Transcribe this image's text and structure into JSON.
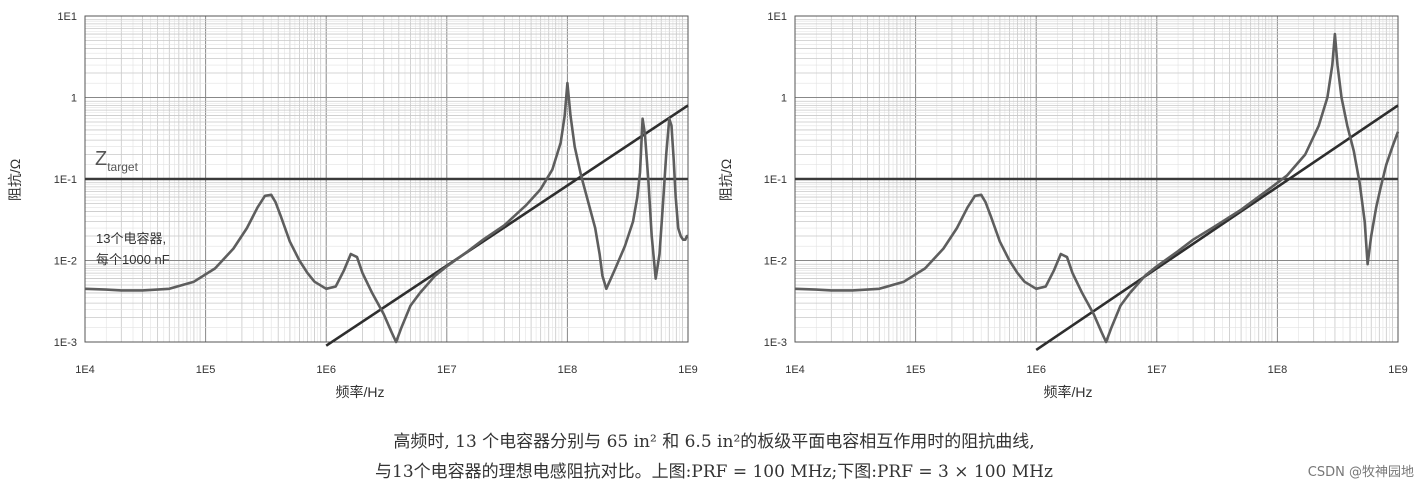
{
  "caption": {
    "line1": "高频时, 13 个电容器分别与 65 in² 和 6.5 in²的板级平面电容相互作用时的阻抗曲线,",
    "line2": "与13个电容器的理想电感阻抗对比。上图:PRF = 100 MHz;下图:PRF = 3 × 100 MHz"
  },
  "watermark": "CSDN @牧神园地",
  "chart_data": [
    {
      "type": "line",
      "xscale": "log",
      "yscale": "log",
      "xlim": [
        10000,
        1000000000
      ],
      "ylim": [
        0.001,
        10
      ],
      "xlabel": "频率/Hz",
      "ylabel": "阻抗/Ω",
      "xticks": [
        "1E4",
        "1E5",
        "1E6",
        "1E7",
        "1E8",
        "1E9"
      ],
      "yticks": [
        "1E1",
        "1",
        "1E-1",
        "1E-2",
        "1E-3"
      ],
      "grid": true,
      "annotations": {
        "target_main": "Z",
        "target_sub": "target",
        "note_line1": "13个电容器,",
        "note_line2": "每个1000 nF"
      },
      "series": [
        {
          "style": "horizontal",
          "y": 0.1
        },
        {
          "style": "inductor",
          "x": [
            1000000,
            1000000000
          ],
          "y": [
            0.0009,
            0.8
          ]
        },
        {
          "style": "impedance",
          "x": [
            10000,
            15000,
            20000,
            30000,
            50000,
            80000,
            120000,
            170000,
            220000,
            270000,
            310000,
            350000,
            380000,
            420000,
            500000,
            600000,
            700000,
            800000,
            1000000,
            1200000,
            1400000,
            1600000,
            1800000,
            2000000,
            2400000,
            3000000,
            3500000,
            3800000,
            4200000,
            5000000,
            6000000,
            8000000,
            10000000,
            15000000,
            20000000,
            30000000,
            45000000,
            60000000,
            75000000,
            88000000,
            95000000,
            100000000,
            106000000,
            115000000,
            130000000,
            150000000,
            170000000,
            185000000,
            195000000,
            210000000,
            250000000,
            300000000,
            350000000,
            380000000,
            400000000,
            420000000,
            440000000,
            470000000,
            500000000,
            540000000,
            580000000,
            620000000,
            660000000,
            700000000,
            730000000,
            760000000,
            790000000,
            830000000,
            870000000,
            910000000,
            950000000,
            980000000,
            1000000000
          ],
          "y": [
            0.0045,
            0.0044,
            0.0043,
            0.0043,
            0.0045,
            0.0055,
            0.008,
            0.014,
            0.025,
            0.045,
            0.062,
            0.064,
            0.052,
            0.035,
            0.017,
            0.01,
            0.007,
            0.0055,
            0.0045,
            0.0048,
            0.0075,
            0.012,
            0.011,
            0.007,
            0.004,
            0.0022,
            0.0013,
            0.001,
            0.0015,
            0.0028,
            0.004,
            0.0065,
            0.0085,
            0.013,
            0.018,
            0.027,
            0.047,
            0.075,
            0.13,
            0.28,
            0.6,
            1.5,
            0.6,
            0.25,
            0.11,
            0.05,
            0.025,
            0.012,
            0.0065,
            0.0045,
            0.008,
            0.015,
            0.03,
            0.06,
            0.12,
            0.55,
            0.35,
            0.09,
            0.02,
            0.006,
            0.012,
            0.05,
            0.2,
            0.55,
            0.45,
            0.18,
            0.06,
            0.025,
            0.02,
            0.018,
            0.018,
            0.02,
            0.02
          ]
        }
      ]
    },
    {
      "type": "line",
      "xscale": "log",
      "yscale": "log",
      "xlim": [
        10000,
        1000000000
      ],
      "ylim": [
        0.001,
        10
      ],
      "xlabel": "频率/Hz",
      "ylabel": "阻抗/Ω",
      "xticks": [
        "1E4",
        "1E5",
        "1E6",
        "1E7",
        "1E8",
        "1E9"
      ],
      "yticks": [
        "1E1",
        "1",
        "1E-1",
        "1E-2",
        "1E-3"
      ],
      "grid": true,
      "series": [
        {
          "style": "horizontal",
          "y": 0.1
        },
        {
          "style": "inductor",
          "x": [
            1000000,
            1000000000
          ],
          "y": [
            0.0008,
            0.8
          ]
        },
        {
          "style": "impedance",
          "x": [
            10000,
            15000,
            20000,
            30000,
            50000,
            80000,
            120000,
            170000,
            220000,
            270000,
            310000,
            350000,
            380000,
            420000,
            500000,
            600000,
            700000,
            800000,
            1000000,
            1200000,
            1400000,
            1600000,
            1800000,
            2000000,
            2400000,
            3000000,
            3500000,
            3800000,
            4200000,
            5000000,
            6000000,
            8000000,
            10000000,
            15000000,
            20000000,
            30000000,
            50000000,
            80000000,
            120000000,
            170000000,
            220000000,
            260000000,
            285000000,
            300000000,
            315000000,
            340000000,
            380000000,
            430000000,
            480000000,
            530000000,
            560000000,
            600000000,
            660000000,
            720000000,
            800000000,
            900000000,
            1000000000
          ],
          "y": [
            0.0045,
            0.0044,
            0.0043,
            0.0043,
            0.0045,
            0.0055,
            0.008,
            0.014,
            0.025,
            0.045,
            0.062,
            0.064,
            0.052,
            0.035,
            0.017,
            0.01,
            0.007,
            0.0055,
            0.0045,
            0.0048,
            0.0075,
            0.012,
            0.011,
            0.007,
            0.004,
            0.0022,
            0.0013,
            0.001,
            0.0015,
            0.0028,
            0.004,
            0.0065,
            0.0085,
            0.013,
            0.018,
            0.026,
            0.042,
            0.07,
            0.11,
            0.2,
            0.45,
            1.0,
            2.5,
            6.0,
            2.5,
            1.0,
            0.45,
            0.22,
            0.09,
            0.03,
            0.009,
            0.02,
            0.045,
            0.08,
            0.15,
            0.25,
            0.38
          ]
        }
      ]
    }
  ]
}
